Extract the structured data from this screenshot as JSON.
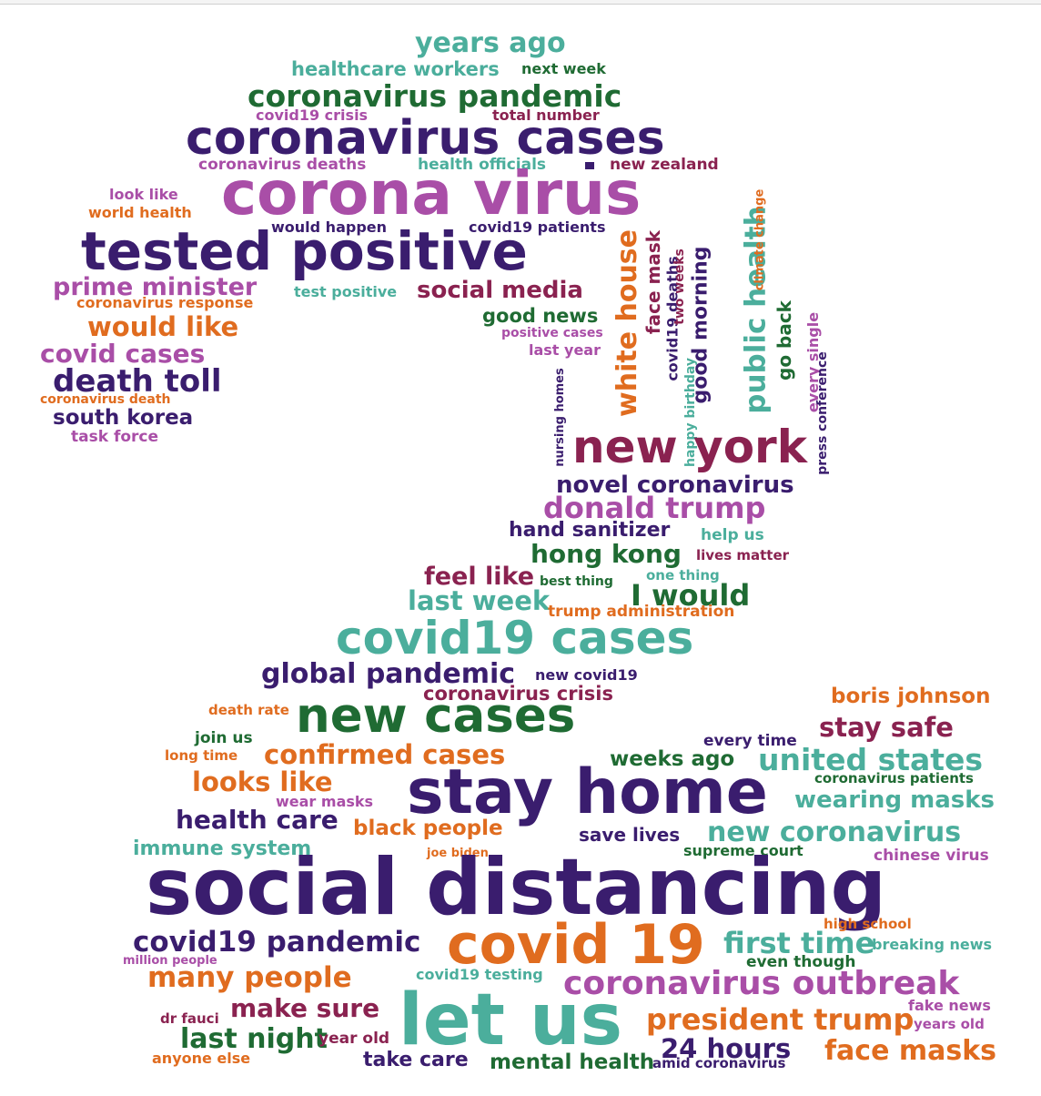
{
  "colors": {
    "purple": "#3a1d6e",
    "teal": "#4bae9c",
    "magenta": "#a94ea7",
    "darkgreen": "#1f6b33",
    "orange": "#e06c1f",
    "maroon": "#8a2250"
  },
  "words": [
    {
      "text": "years ago",
      "color": "teal"
    },
    {
      "text": "healthcare workers",
      "color": "teal"
    },
    {
      "text": "next week",
      "color": "darkgreen"
    },
    {
      "text": "coronavirus pandemic",
      "color": "darkgreen"
    },
    {
      "text": "covid19 crisis",
      "color": "magenta"
    },
    {
      "text": "total number",
      "color": "maroon"
    },
    {
      "text": "coronavirus cases",
      "color": "purple"
    },
    {
      "text": "coronavirus deaths",
      "color": "magenta"
    },
    {
      "text": "health officials",
      "color": "teal"
    },
    {
      "text": "new zealand",
      "color": "maroon"
    },
    {
      "text": "corona virus",
      "color": "magenta"
    },
    {
      "text": "look like",
      "color": "magenta"
    },
    {
      "text": "world health",
      "color": "orange"
    },
    {
      "text": "would happen",
      "color": "purple"
    },
    {
      "text": "covid19 patients",
      "color": "purple"
    },
    {
      "text": "tested positive",
      "color": "purple"
    },
    {
      "text": "prime minister",
      "color": "magenta"
    },
    {
      "text": "coronavirus response",
      "color": "orange"
    },
    {
      "text": "test positive",
      "color": "teal"
    },
    {
      "text": "social media",
      "color": "maroon"
    },
    {
      "text": "good news",
      "color": "darkgreen"
    },
    {
      "text": "positive cases",
      "color": "magenta"
    },
    {
      "text": "last year",
      "color": "magenta"
    },
    {
      "text": "would like",
      "color": "orange"
    },
    {
      "text": "covid cases",
      "color": "magenta"
    },
    {
      "text": "death toll",
      "color": "purple"
    },
    {
      "text": "coronavirus death",
      "color": "orange"
    },
    {
      "text": "south korea",
      "color": "purple"
    },
    {
      "text": "task force",
      "color": "magenta"
    },
    {
      "text": "white house",
      "color": "orange"
    },
    {
      "text": "face mask",
      "color": "maroon"
    },
    {
      "text": "covid19 deaths",
      "color": "purple"
    },
    {
      "text": "two weeks",
      "color": "maroon"
    },
    {
      "text": "good morning",
      "color": "purple"
    },
    {
      "text": "happy birthday",
      "color": "teal"
    },
    {
      "text": "public health",
      "color": "teal"
    },
    {
      "text": "climate change",
      "color": "orange"
    },
    {
      "text": "go back",
      "color": "darkgreen"
    },
    {
      "text": "every single",
      "color": "magenta"
    },
    {
      "text": "press conference",
      "color": "purple"
    },
    {
      "text": "nursing homes",
      "color": "purple"
    },
    {
      "text": "new york",
      "color": "maroon"
    },
    {
      "text": "novel coronavirus",
      "color": "purple"
    },
    {
      "text": "donald trump",
      "color": "magenta"
    },
    {
      "text": "hand sanitizer",
      "color": "purple"
    },
    {
      "text": "help us",
      "color": "teal"
    },
    {
      "text": "hong kong",
      "color": "darkgreen"
    },
    {
      "text": "lives matter",
      "color": "maroon"
    },
    {
      "text": "feel like",
      "color": "maroon"
    },
    {
      "text": "best thing",
      "color": "darkgreen"
    },
    {
      "text": "one thing",
      "color": "teal"
    },
    {
      "text": "I would",
      "color": "darkgreen"
    },
    {
      "text": "last week",
      "color": "teal"
    },
    {
      "text": "trump administration",
      "color": "orange"
    },
    {
      "text": "covid19 cases",
      "color": "teal"
    },
    {
      "text": "global pandemic",
      "color": "purple"
    },
    {
      "text": "new covid19",
      "color": "purple"
    },
    {
      "text": "coronavirus crisis",
      "color": "maroon"
    },
    {
      "text": "death rate",
      "color": "orange"
    },
    {
      "text": "new cases",
      "color": "darkgreen"
    },
    {
      "text": "boris johnson",
      "color": "orange"
    },
    {
      "text": "join us",
      "color": "darkgreen"
    },
    {
      "text": "every time",
      "color": "purple"
    },
    {
      "text": "stay safe",
      "color": "maroon"
    },
    {
      "text": "long time",
      "color": "orange"
    },
    {
      "text": "confirmed cases",
      "color": "orange"
    },
    {
      "text": "weeks ago",
      "color": "darkgreen"
    },
    {
      "text": "united states",
      "color": "teal"
    },
    {
      "text": "coronavirus patients",
      "color": "darkgreen"
    },
    {
      "text": "looks like",
      "color": "orange"
    },
    {
      "text": "stay home",
      "color": "purple"
    },
    {
      "text": "wear masks",
      "color": "magenta"
    },
    {
      "text": "wearing masks",
      "color": "teal"
    },
    {
      "text": "health care",
      "color": "purple"
    },
    {
      "text": "black people",
      "color": "orange"
    },
    {
      "text": "save lives",
      "color": "purple"
    },
    {
      "text": "new coronavirus",
      "color": "teal"
    },
    {
      "text": "immune system",
      "color": "teal"
    },
    {
      "text": "joe biden",
      "color": "orange"
    },
    {
      "text": "supreme court",
      "color": "darkgreen"
    },
    {
      "text": "chinese virus",
      "color": "magenta"
    },
    {
      "text": "social distancing",
      "color": "purple"
    },
    {
      "text": "high school",
      "color": "orange"
    },
    {
      "text": "covid19 pandemic",
      "color": "purple"
    },
    {
      "text": "covid 19",
      "color": "orange"
    },
    {
      "text": "first time",
      "color": "teal"
    },
    {
      "text": "breaking news",
      "color": "teal"
    },
    {
      "text": "million people",
      "color": "magenta"
    },
    {
      "text": "even though",
      "color": "darkgreen"
    },
    {
      "text": "covid19 testing",
      "color": "teal"
    },
    {
      "text": "many people",
      "color": "orange"
    },
    {
      "text": "coronavirus outbreak",
      "color": "magenta"
    },
    {
      "text": "fake news",
      "color": "magenta"
    },
    {
      "text": "dr fauci",
      "color": "maroon"
    },
    {
      "text": "make sure",
      "color": "maroon"
    },
    {
      "text": "let us",
      "color": "teal"
    },
    {
      "text": "president trump",
      "color": "orange"
    },
    {
      "text": "years old",
      "color": "magenta"
    },
    {
      "text": "last night",
      "color": "darkgreen"
    },
    {
      "text": "year old",
      "color": "maroon"
    },
    {
      "text": "24 hours",
      "color": "purple"
    },
    {
      "text": "anyone else",
      "color": "orange"
    },
    {
      "text": "take care",
      "color": "purple"
    },
    {
      "text": "mental health",
      "color": "darkgreen"
    },
    {
      "text": "amid coronavirus",
      "color": "purple"
    },
    {
      "text": "face masks",
      "color": "orange"
    }
  ]
}
